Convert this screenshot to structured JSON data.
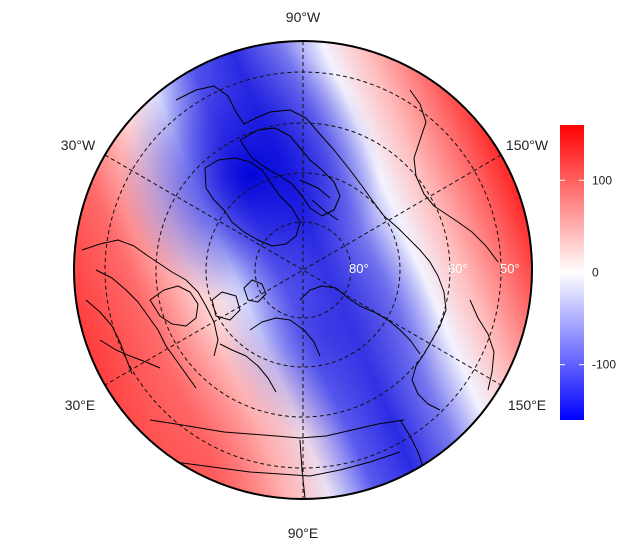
{
  "map": {
    "projection": "polar stereographic (north pole centered)",
    "meridian_labels": {
      "top": "90°W",
      "upper_left": "30°W",
      "upper_right": "150°W",
      "lower_left": "30°E",
      "lower_right": "150°E",
      "bottom": "90°E"
    },
    "latitude_labels": [
      "80°",
      "60°",
      "50°"
    ],
    "colors": {
      "low": "#0000dd",
      "mid": "#ffffff",
      "high": "#ff1a1a",
      "grid": "#111111",
      "coast": "#000000"
    },
    "field_pattern": "blue trough over Canadian Arctic / Greenland toward pole and Siberia; red over Europe/Atlantic and Bering/Alaska"
  },
  "colorbar": {
    "ticks": [
      {
        "value": 100,
        "label": "100"
      },
      {
        "value": 0,
        "label": "0"
      },
      {
        "value": -100,
        "label": "-100"
      }
    ],
    "range": [
      -160,
      160
    ]
  }
}
